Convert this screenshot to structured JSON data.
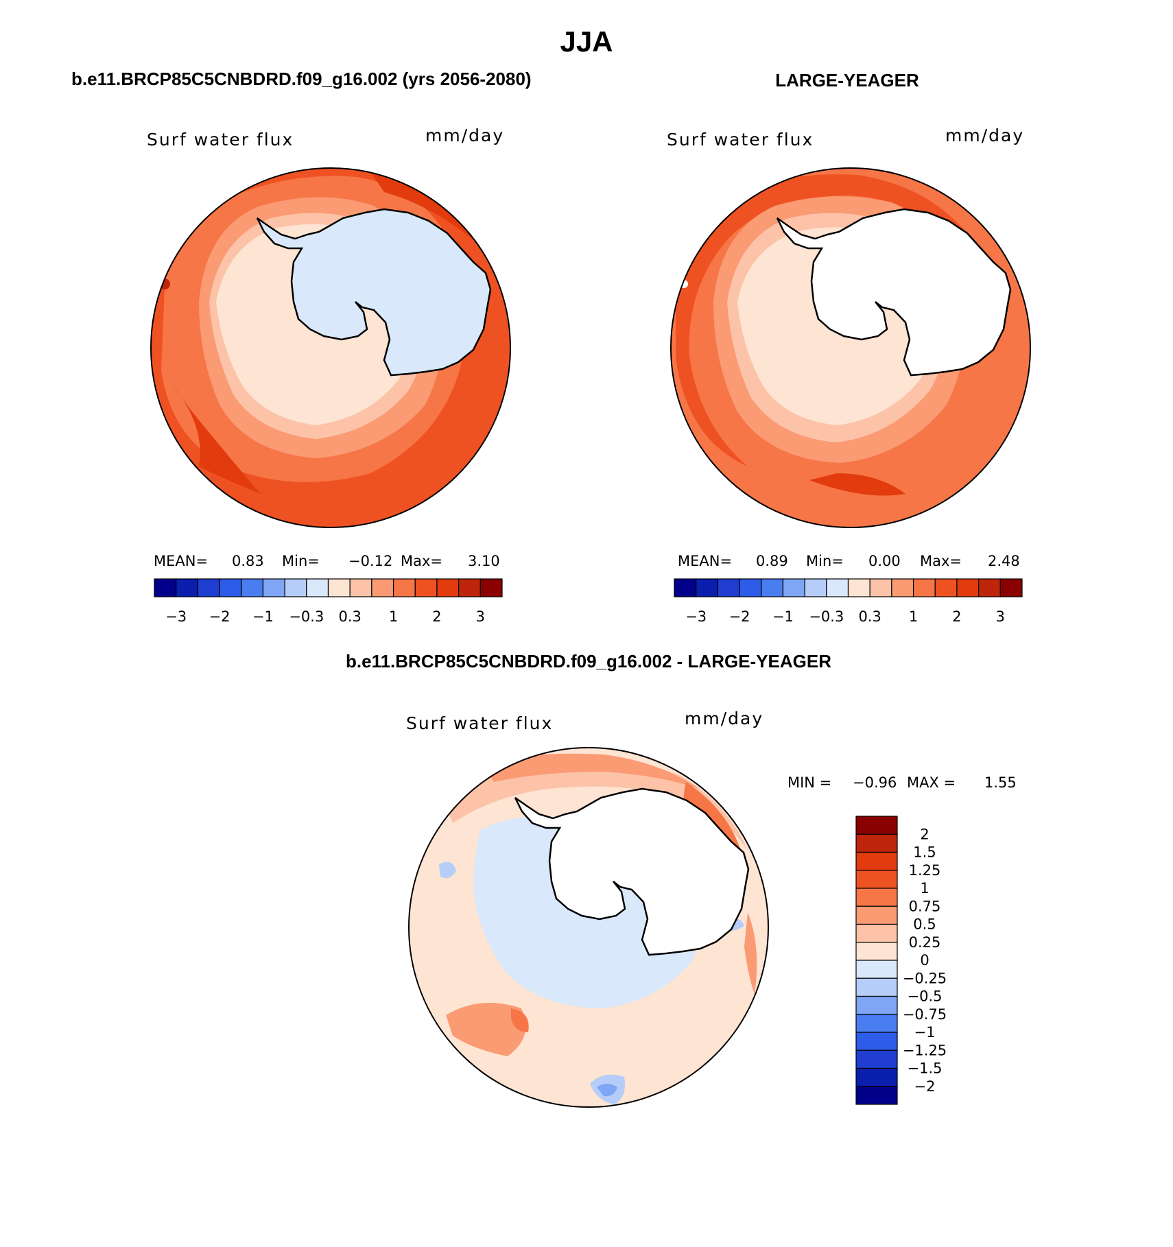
{
  "figure": {
    "season_title": "JJA",
    "panels": [
      {
        "id": "left",
        "case_title": "b.e11.BRCP85C5CNBDRD.f09_g16.002 (yrs 2056-2080)",
        "variable": "Surf water flux",
        "units": "mm/day",
        "stats": {
          "mean_label": "MEAN=",
          "mean": "0.83",
          "min_label": "Min=",
          "min": "−0.12",
          "max_label": "Max=",
          "max": "3.10"
        }
      },
      {
        "id": "right",
        "case_title": "LARGE-YEAGER",
        "variable": "Surf water flux",
        "units": "mm/day",
        "stats": {
          "mean_label": "MEAN=",
          "mean": "0.89",
          "min_label": "Min=",
          "min": "0.00",
          "max_label": "Max=",
          "max": "2.48"
        }
      },
      {
        "id": "diff",
        "case_title": "b.e11.BRCP85C5CNBDRD.f09_g16.002 - LARGE-YEAGER",
        "variable": "Surf water flux",
        "units": "mm/day",
        "stats": {
          "min_label": "MIN =",
          "min": "−0.96",
          "max_label": "MAX =",
          "max": "1.55"
        }
      }
    ],
    "main_colorbar": {
      "colors": [
        "#00008b",
        "#0a1fae",
        "#1f3ed0",
        "#2c5ce8",
        "#4a7df0",
        "#7fa5f5",
        "#b5cdf8",
        "#d9e8fa",
        "#fde4d3",
        "#fcc3a8",
        "#fa9b74",
        "#f67647",
        "#ef5222",
        "#e23b0e",
        "#bf250a",
        "#8b0000"
      ],
      "tick_labels": [
        "−3",
        "−2",
        "−1",
        "−0.3",
        "0.3",
        "1",
        "2",
        "3"
      ]
    },
    "diff_colorbar": {
      "colors": [
        "#8b0000",
        "#bf250a",
        "#e23b0e",
        "#ef5222",
        "#f67647",
        "#fa9b74",
        "#fcc3a8",
        "#fde4d3",
        "#d9e8fa",
        "#b5cdf8",
        "#7fa5f5",
        "#4a7df0",
        "#2c5ce8",
        "#1f3ed0",
        "#0a1fae",
        "#00008b"
      ],
      "tick_labels": [
        "2",
        "1.5",
        "1.25",
        "1",
        "0.75",
        "0.5",
        "0.25",
        "0",
        "−0.25",
        "−0.5",
        "−0.75",
        "−1",
        "−1.25",
        "−1.5",
        "−2"
      ]
    }
  }
}
